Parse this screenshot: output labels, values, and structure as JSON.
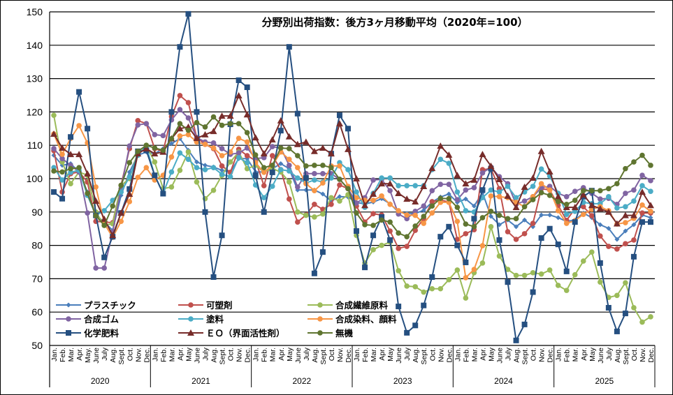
{
  "chart_data": {
    "type": "line",
    "title": "分野別出荷指数：後方3ヶ月移動平均（2020年=100）",
    "xlabel": "",
    "ylabel": "",
    "ylim": [
      50,
      150
    ],
    "yticks": [
      50,
      60,
      70,
      80,
      90,
      100,
      110,
      120,
      130,
      140,
      150
    ],
    "grid": true,
    "legend_placement": "bottom-left (inside plot)",
    "years": [
      "2020",
      "2021",
      "2022",
      "2023",
      "2024",
      "2025"
    ],
    "month_labels": [
      [
        "Jan.",
        "Feb.",
        "Mar.",
        "Apr.",
        "May.",
        "June",
        "July",
        "Aug.",
        "Sept.",
        "Oct.",
        "Nov.",
        "Dec."
      ],
      [
        "Jan.",
        "Feb.",
        "Mar.",
        "Apr.",
        "May",
        "June",
        "July",
        "Aug.",
        "Sept.",
        "Oct.",
        "Nov.",
        "Dec."
      ],
      [
        "Jan.",
        "Feb.",
        "Mar.",
        "Apr.",
        "May",
        "June",
        "July",
        "Aug.",
        "Sept.",
        "Oct.",
        "Nov.",
        "Dec."
      ],
      [
        "Jan.",
        "Feb.",
        "Mar.",
        "Apr.",
        "May",
        "June",
        "July",
        "Aug.",
        "Sept.",
        "Oct.",
        "Nov.",
        "Dec."
      ],
      [
        "Jan.",
        "Feb.",
        "Mar.",
        "Apr.",
        "May",
        "June",
        "July",
        "Aug.",
        "Sept.",
        "Oct.",
        "Nov.",
        "Dec."
      ],
      [
        "Jan.",
        "Feb.",
        "Mar.",
        "Apr.",
        "May",
        "June",
        "July",
        "Aug.",
        "Sept.",
        "Oct.",
        "Nov.",
        "Dec."
      ]
    ],
    "series": [
      {
        "name": "プラスチック",
        "color": "#4a7ebb",
        "marker": "diamond",
        "values": [
          107,
          104,
          104.5,
          102,
          96,
          89,
          87,
          84.5,
          95,
          102,
          107,
          108,
          107.5,
          109,
          110.5,
          112,
          108.5,
          105,
          104,
          103.5,
          102.5,
          102,
          106,
          106,
          102,
          102,
          103,
          104.5,
          103,
          96.6,
          96.6,
          96.6,
          95.4,
          93.3,
          94.6,
          94.5,
          92.9,
          92.4,
          93,
          94,
          92.5,
          90,
          89.6,
          89.6,
          90.5,
          93,
          94.5,
          95.4,
          92.9,
          93.9,
          91.8,
          95.8,
          88.7,
          86.2,
          87.6,
          85.6,
          87.6,
          85.6,
          89.1,
          89.1,
          88.3,
          87.2,
          87.6,
          89.7,
          88.3,
          86.2,
          85.1,
          81.8,
          84.3,
          86.2,
          89.1,
          88.3
        ]
      },
      {
        "name": "可塑剤",
        "color": "#c0504d",
        "marker": "circle",
        "values": [
          108.4,
          96,
          101.5,
          102,
          99,
          87.2,
          87,
          86.8,
          98,
          109,
          117.4,
          116.5,
          109,
          108.2,
          118.6,
          124.9,
          122.8,
          112.3,
          110.3,
          109,
          103.8,
          101.9,
          108.8,
          106.9,
          105.4,
          97.9,
          106.9,
          102.7,
          93.9,
          87,
          89.1,
          92.3,
          90.8,
          92.3,
          98.1,
          97,
          91.8,
          87,
          89.5,
          89.1,
          84.3,
          79.1,
          79.7,
          84.5,
          88.1,
          93.1,
          93.6,
          93,
          81.8,
          83.5,
          84.7,
          102.7,
          103,
          97,
          84.1,
          81.8,
          83.5,
          86.6,
          97,
          96.6,
          92,
          87.5,
          91,
          91.6,
          88.9,
          82.8,
          79.7,
          78.9,
          80.5,
          81.6,
          89.7,
          89.7
        ]
      },
      {
        "name": "合成繊維原料",
        "color": "#9bbb59",
        "marker": "circle",
        "values": [
          119,
          105,
          98.5,
          102,
          101,
          90,
          86,
          86.5,
          98,
          100,
          108,
          110,
          105,
          97,
          97.5,
          102.5,
          108,
          99,
          94,
          96.5,
          101,
          105,
          108,
          103,
          104,
          102,
          103,
          102,
          99,
          90,
          89,
          88.5,
          89.4,
          94.3,
          93.3,
          95.2,
          83,
          74.7,
          78.7,
          80,
          81,
          72.4,
          67.8,
          67.6,
          66,
          67,
          67,
          69.7,
          72.6,
          64.2,
          71.8,
          74.7,
          85.6,
          76.8,
          72.8,
          71,
          71,
          71.8,
          71.4,
          72.6,
          68,
          66.5,
          71.2,
          75.3,
          78,
          69,
          64.4,
          65,
          68.8,
          61.3,
          57,
          58.6
        ]
      },
      {
        "name": "合成ゴム",
        "color": "#8064a2",
        "marker": "circle",
        "values": [
          109,
          106,
          104,
          102,
          89.7,
          73.2,
          73.2,
          84,
          97,
          109.8,
          116.1,
          116.5,
          113.2,
          112.9,
          117.6,
          120.7,
          118.2,
          112.3,
          111,
          110.7,
          109,
          107.3,
          107.7,
          109.2,
          106,
          106.3,
          109.6,
          109.2,
          104,
          97.5,
          101.5,
          101.5,
          101.5,
          101.5,
          99.8,
          97,
          92.7,
          94.3,
          99.6,
          99.8,
          96.4,
          89.4,
          88,
          90.2,
          91.8,
          96.4,
          98.3,
          98.3,
          93.7,
          96.6,
          97.3,
          101.7,
          103.5,
          100.6,
          98.5,
          92.3,
          93.3,
          94.6,
          97.3,
          97.7,
          95.6,
          94.6,
          96.2,
          97.3,
          95.6,
          93.9,
          94.1,
          92.3,
          95.6,
          96.6,
          101,
          99.4
        ]
      },
      {
        "name": "塗料",
        "color": "#4bacc6",
        "marker": "circle",
        "values": [
          103.3,
          99.6,
          101.9,
          102.5,
          95,
          89,
          90.4,
          93.5,
          96,
          100.5,
          107,
          109.8,
          101,
          95.6,
          102,
          107.7,
          105.8,
          103.3,
          102.7,
          103.3,
          101.3,
          100.6,
          106.3,
          104.8,
          98.1,
          94.3,
          97.7,
          102.7,
          102.3,
          100.2,
          98.7,
          99.6,
          99,
          100.2,
          104.8,
          102.7,
          96,
          91.4,
          95.6,
          100.2,
          100.2,
          97.9,
          97.9,
          97.9,
          97.9,
          102.7,
          105.8,
          104.6,
          96,
          90.4,
          90,
          94.3,
          96.6,
          96,
          97.7,
          94.3,
          96,
          97.7,
          102.9,
          100.8,
          95.6,
          89.3,
          90.2,
          92.9,
          92.5,
          92.5,
          94.6,
          91.2,
          91.6,
          93.3,
          97.9,
          96.2
        ]
      },
      {
        "name": "合成染料、顔料",
        "color": "#f79646",
        "marker": "circle",
        "values": [
          113.4,
          107.3,
          112.1,
          115.9,
          110.7,
          97.5,
          86.6,
          82.4,
          87.2,
          93.1,
          100.4,
          103.3,
          99.6,
          101,
          106.5,
          112.8,
          113.2,
          111,
          110.3,
          109.2,
          106.9,
          108,
          112.1,
          111,
          104.8,
          101.9,
          104,
          108,
          105.8,
          103.3,
          98.5,
          96.4,
          98.7,
          103.8,
          103.8,
          97.7,
          94.3,
          93.5,
          93.5,
          94.8,
          92.3,
          90.4,
          89.1,
          89,
          86.6,
          89.7,
          92.9,
          92.9,
          87.2,
          70.3,
          72.8,
          79.9,
          94.8,
          94.6,
          94.3,
          92.9,
          91.6,
          94.6,
          98.5,
          96.6,
          90.4,
          86.6,
          87.4,
          89.3,
          90.8,
          91.6,
          90.4,
          86.4,
          86.8,
          88.1,
          92.1,
          90.2
        ]
      },
      {
        "name": "化学肥料",
        "color": "#254f80",
        "marker": "square",
        "values": [
          96,
          94,
          112.5,
          126,
          115,
          89,
          76.4,
          82.6,
          89.7,
          96.9,
          108.2,
          108.5,
          101,
          95.5,
          120,
          139.5,
          149.4,
          120,
          90,
          70.5,
          83,
          116.3,
          129.5,
          127.4,
          101,
          90,
          101.9,
          114.4,
          139.5,
          119.5,
          100.2,
          71.6,
          78,
          107.5,
          119,
          115,
          84.3,
          73.4,
          83,
          88.5,
          81.6,
          61.7,
          53.8,
          56,
          62,
          70.5,
          82.6,
          85.6,
          80,
          74.9,
          88,
          96.6,
          103,
          81.6,
          69,
          51.5,
          56.3,
          66,
          82.2,
          85,
          80.3,
          72.2,
          87,
          94.6,
          96.4,
          74.7,
          61.3,
          54.2,
          59.6,
          76.6,
          87,
          87
        ]
      },
      {
        "name": "ＥＯ（界面活性剤）",
        "color": "#772c2a",
        "marker": "triangle",
        "values": [
          113.4,
          109.2,
          107.3,
          107.3,
          101.5,
          93.3,
          87.9,
          83,
          89.7,
          95.4,
          107.5,
          109,
          107.5,
          108,
          112,
          115,
          115.5,
          112.1,
          113.2,
          114.2,
          118.8,
          118.8,
          124.9,
          119.2,
          112.3,
          107.5,
          111.7,
          117.4,
          112.6,
          110.3,
          111,
          108.2,
          109.2,
          107.5,
          116.5,
          108.8,
          100,
          92,
          95.4,
          98.5,
          98.5,
          95.6,
          93.9,
          93.1,
          97.7,
          103.1,
          109.8,
          107.1,
          101,
          98.5,
          99.6,
          107.3,
          103.8,
          99.8,
          94.8,
          91.4,
          97.5,
          100.2,
          108.2,
          102.1,
          94.6,
          91.4,
          91.4,
          95.2,
          92,
          91,
          90,
          86.5,
          89,
          89,
          96,
          92
        ]
      },
      {
        "name": "無機",
        "color": "#5f7530",
        "marker": "circle",
        "values": [
          102.3,
          102,
          103,
          103.3,
          95.6,
          88.9,
          86,
          91.8,
          98,
          104.8,
          108.2,
          110,
          109.2,
          108.5,
          112,
          116.5,
          114.5,
          116.8,
          115.5,
          118.5,
          116,
          116.5,
          116.5,
          113.8,
          107.1,
          103.3,
          104,
          109.2,
          109,
          106.9,
          103.8,
          104,
          104,
          103.3,
          99.8,
          97,
          89.7,
          86.2,
          86,
          87.6,
          87,
          83.7,
          82.6,
          85.8,
          88.7,
          91.8,
          94.1,
          94,
          91.4,
          86.4,
          85.6,
          88.3,
          90.2,
          89,
          88,
          88,
          91.6,
          93.7,
          95.8,
          95,
          93.1,
          92.3,
          93.5,
          96.4,
          96.4,
          96.4,
          97,
          98.5,
          103,
          105,
          107,
          104
        ]
      }
    ]
  }
}
